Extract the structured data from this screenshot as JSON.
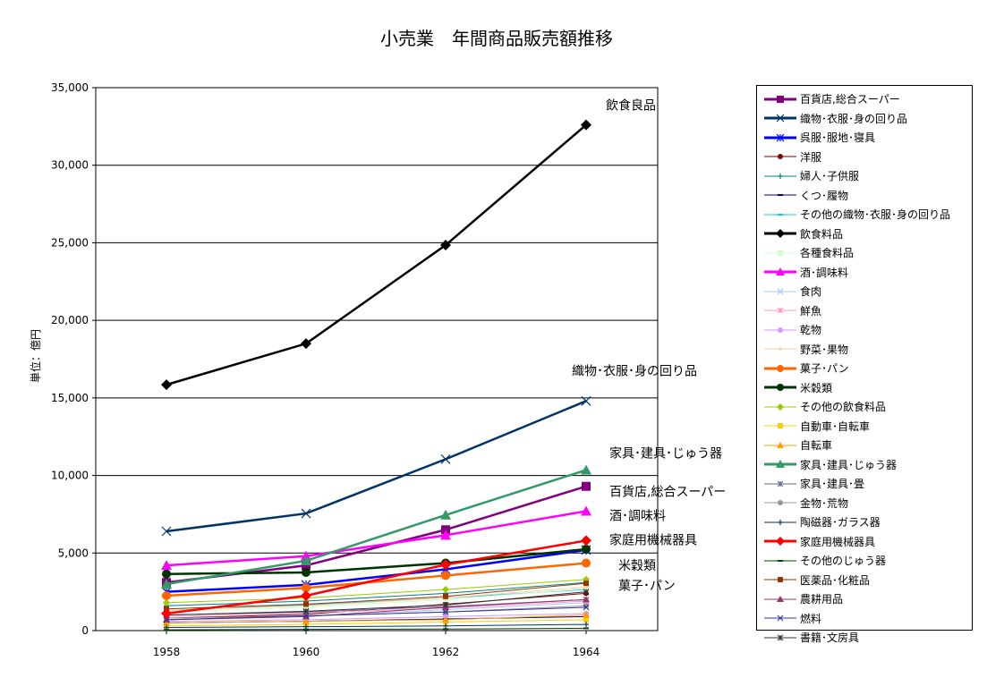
{
  "chart_data": {
    "type": "line",
    "title": "小売業　年間商品販売額推移",
    "ylabel": "単位：億円",
    "xlabel": "",
    "categories": [
      "1958",
      "1960",
      "1962",
      "1964"
    ],
    "ylim": [
      0,
      35000
    ],
    "yticks": [
      "0",
      "5,000",
      "10,000",
      "15,000",
      "20,000",
      "25,000",
      "30,000",
      "35,000"
    ],
    "grid": "horizontal",
    "legend_position": "right",
    "series": [
      {
        "name": "百貨店,総合スーパー",
        "color": "#800080",
        "marker": "square",
        "width": 2.5,
        "values": [
          3100,
          4200,
          6500,
          9300
        ]
      },
      {
        "name": "織物･衣服･身の回り品",
        "color": "#003366",
        "marker": "x",
        "width": 2.5,
        "values": [
          6400,
          7550,
          11050,
          14800
        ]
      },
      {
        "name": "呉服･服地･寝具",
        "color": "#0000FF",
        "marker": "asterisk",
        "width": 2.5,
        "values": [
          2500,
          2950,
          3950,
          5200
        ]
      },
      {
        "name": "洋服",
        "color": "#800000",
        "marker": "circle",
        "width": 1,
        "values": [
          800,
          1050,
          1700,
          2400
        ]
      },
      {
        "name": "婦人･子供服",
        "color": "#008080",
        "marker": "plus",
        "width": 1,
        "values": [
          1600,
          1900,
          2400,
          3100
        ]
      },
      {
        "name": "くつ･履物",
        "color": "#000080",
        "marker": "dash",
        "width": 1,
        "values": [
          500,
          600,
          750,
          900
        ]
      },
      {
        "name": "その他の織物･衣服･身の回り品",
        "color": "#00CCFF",
        "marker": "dash",
        "width": 1,
        "values": [
          1300,
          1650,
          2100,
          2650
        ]
      },
      {
        "name": "飲食料品",
        "color": "#000000",
        "marker": "diamond",
        "width": 2.5,
        "values": [
          15850,
          18500,
          24850,
          32600
        ]
      },
      {
        "name": "各種食料品",
        "color": "#CCFFCC",
        "marker": "square",
        "width": 1,
        "values": [
          1200,
          1500,
          2000,
          2700
        ]
      },
      {
        "name": "酒･調味料",
        "color": "#FF00FF",
        "marker": "triangle",
        "width": 2.5,
        "values": [
          4200,
          4800,
          6150,
          7700
        ]
      },
      {
        "name": "食肉",
        "color": "#99CCFF",
        "marker": "x",
        "width": 1,
        "values": [
          700,
          950,
          1350,
          1800
        ]
      },
      {
        "name": "鮮魚",
        "color": "#FF99CC",
        "marker": "asterisk",
        "width": 1,
        "values": [
          900,
          1150,
          1450,
          1900
        ]
      },
      {
        "name": "乾物",
        "color": "#CC99FF",
        "marker": "circle",
        "width": 1,
        "values": [
          600,
          700,
          900,
          1100
        ]
      },
      {
        "name": "野菜･果物",
        "color": "#FFCC99",
        "marker": "plus",
        "width": 1,
        "values": [
          1300,
          1600,
          2100,
          2800
        ]
      },
      {
        "name": "菓子･パン",
        "color": "#FF6600",
        "marker": "circle",
        "width": 2.5,
        "values": [
          2250,
          2750,
          3550,
          4350
        ]
      },
      {
        "name": "米穀類",
        "color": "#003300",
        "marker": "circle",
        "width": 2.5,
        "values": [
          3650,
          3750,
          4350,
          5250
        ]
      },
      {
        "name": "その他の飲食料品",
        "color": "#99CC00",
        "marker": "diamond",
        "width": 1,
        "values": [
          1800,
          2100,
          2650,
          3300
        ]
      },
      {
        "name": "自動車･自転車",
        "color": "#FFCC00",
        "marker": "square",
        "width": 1,
        "values": [
          300,
          400,
          550,
          700
        ]
      },
      {
        "name": "自転車",
        "color": "#FF9900",
        "marker": "triangle",
        "width": 1,
        "values": [
          500,
          600,
          700,
          1000
        ]
      },
      {
        "name": "家具･建具･じゅう器",
        "color": "#339966",
        "marker": "triangle",
        "width": 2.5,
        "values": [
          3000,
          4500,
          7450,
          10350
        ]
      },
      {
        "name": "家具･建具･畳",
        "color": "#666699",
        "marker": "asterisk",
        "width": 1,
        "values": [
          1000,
          1200,
          1550,
          2000
        ]
      },
      {
        "name": "金物･荒物",
        "color": "#969696",
        "marker": "circle",
        "width": 1,
        "values": [
          800,
          950,
          1200,
          1600
        ]
      },
      {
        "name": "陶磁器･ガラス器",
        "color": "#003366",
        "marker": "plus",
        "width": 1,
        "values": [
          200,
          250,
          300,
          400
        ]
      },
      {
        "name": "家庭用機械器具",
        "color": "#FF0000",
        "marker": "diamond",
        "width": 2.5,
        "values": [
          1100,
          2250,
          4250,
          5800
        ]
      },
      {
        "name": "その他のじゅう器",
        "color": "#004000",
        "marker": "dash",
        "width": 1,
        "values": [
          50,
          80,
          100,
          150
        ]
      },
      {
        "name": "医薬品･化粧品",
        "color": "#993300",
        "marker": "square",
        "width": 1,
        "values": [
          1400,
          1700,
          2200,
          3050
        ]
      },
      {
        "name": "農耕用品",
        "color": "#993366",
        "marker": "triangle",
        "width": 1,
        "values": [
          700,
          900,
          1500,
          2000
        ]
      },
      {
        "name": "燃料",
        "color": "#333399",
        "marker": "x",
        "width": 1,
        "values": [
          700,
          950,
          1200,
          1500
        ]
      },
      {
        "name": "書籍･文房具",
        "color": "#333333",
        "marker": "asterisk",
        "width": 1,
        "values": [
          1000,
          1250,
          1650,
          2500
        ]
      }
    ],
    "annotations": [
      {
        "text": "飲食良品",
        "series": "飲食料品"
      },
      {
        "text": "織物･衣服･身の回り品",
        "series": "織物･衣服･身の回り品"
      },
      {
        "text": "家具･建具･じゅう器",
        "series": "家具･建具･じゅう器"
      },
      {
        "text": "百貨店,総合スーパー",
        "series": "百貨店,総合スーパー"
      },
      {
        "text": "酒･調味料",
        "series": "酒･調味料"
      },
      {
        "text": "家庭用機械器具",
        "series": "家庭用機械器具"
      },
      {
        "text": "米穀類",
        "series": "米穀類"
      },
      {
        "text": "菓子･パン",
        "series": "菓子･パン"
      }
    ]
  }
}
